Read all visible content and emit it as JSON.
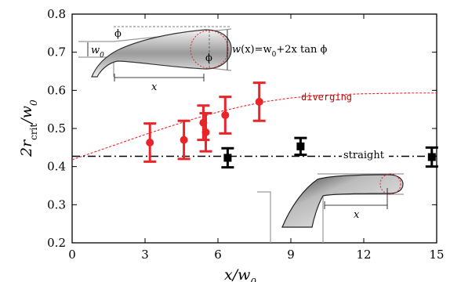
{
  "chart_data": {
    "type": "scatter",
    "xlabel_main": "x/w",
    "xlabel_sub": "0",
    "ylabel_main": "2r",
    "ylabel_sub1": "crit",
    "ylabel_slash": "/w",
    "ylabel_sub2": "0",
    "xlim": [
      0,
      15
    ],
    "ylim": [
      0.2,
      0.8
    ],
    "xticks": [
      0,
      3,
      6,
      9,
      12,
      15
    ],
    "yticks": [
      0.2,
      0.3,
      0.4,
      0.5,
      0.6,
      0.7,
      0.8
    ],
    "series": [
      {
        "name": "diverging",
        "color": "#e8262a",
        "marker": "circle",
        "points": [
          {
            "x": 3.2,
            "y": 0.463,
            "err": 0.05
          },
          {
            "x": 4.6,
            "y": 0.47,
            "err": 0.05
          },
          {
            "x": 5.4,
            "y": 0.515,
            "err": 0.045
          },
          {
            "x": 5.5,
            "y": 0.49,
            "err": 0.05
          },
          {
            "x": 6.3,
            "y": 0.535,
            "err": 0.048
          },
          {
            "x": 7.7,
            "y": 0.57,
            "err": 0.05
          }
        ]
      },
      {
        "name": "straight",
        "color": "#000000",
        "marker": "square",
        "points": [
          {
            "x": 6.4,
            "y": 0.423,
            "err": 0.025
          },
          {
            "x": 9.4,
            "y": 0.453,
            "err": 0.022
          },
          {
            "x": 14.8,
            "y": 0.425,
            "err": 0.025
          }
        ]
      }
    ],
    "straight_line": {
      "y": 0.427,
      "label": "straight",
      "color": "#000000"
    },
    "diverging_curve": {
      "label": "diverging",
      "color": "#e8262a",
      "points": [
        [
          0,
          0.418
        ],
        [
          1,
          0.44
        ],
        [
          2,
          0.462
        ],
        [
          3,
          0.484
        ],
        [
          4,
          0.505
        ],
        [
          5,
          0.525
        ],
        [
          6,
          0.543
        ],
        [
          7,
          0.558
        ],
        [
          8,
          0.571
        ],
        [
          9,
          0.58
        ],
        [
          10,
          0.586
        ],
        [
          11,
          0.589
        ],
        [
          12,
          0.591
        ],
        [
          13,
          0.592
        ],
        [
          14,
          0.593
        ],
        [
          15,
          0.593
        ]
      ]
    },
    "inset_top": {
      "phi_label": "ϕ",
      "w0_main": "w",
      "w0_sub": "0",
      "x_label": "x",
      "formula_w": "w",
      "formula_x": "(x)",
      "formula_eq": "=w",
      "formula_sub": "0",
      "formula_rest": "+2x tan ϕ"
    },
    "inset_bottom": {
      "x_label": "x"
    }
  }
}
